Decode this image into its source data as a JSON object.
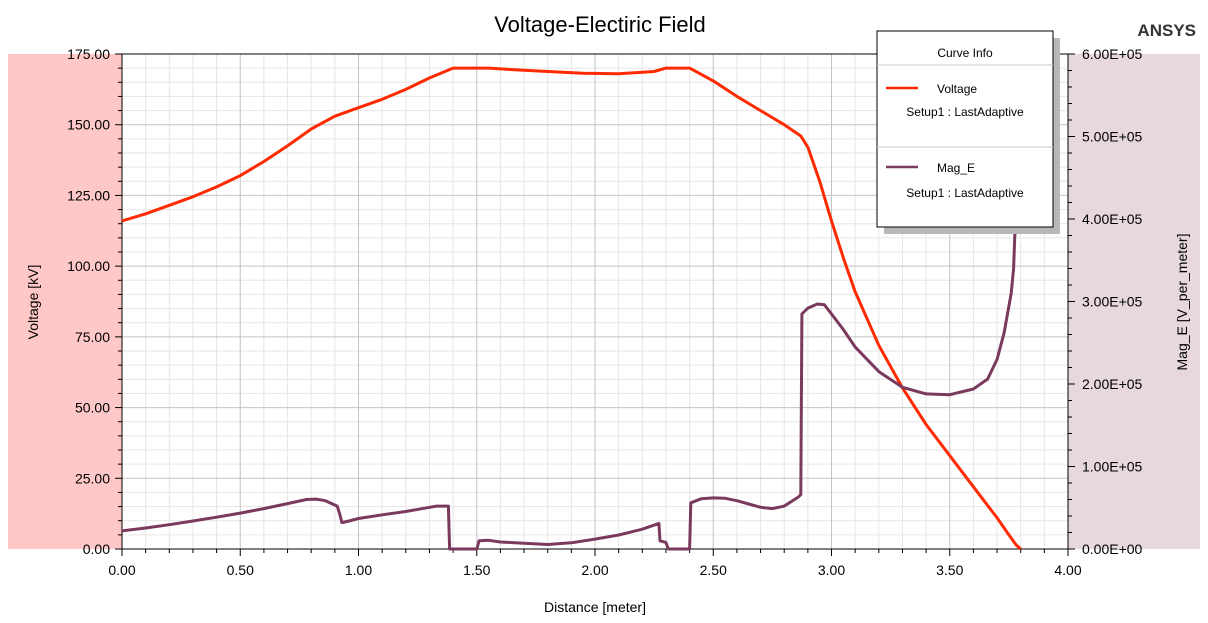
{
  "header": {
    "title": "Voltage-Electiric Field",
    "brand": "ANSYS"
  },
  "legend": {
    "title": "Curve Info",
    "placement": "top-right",
    "entries": [
      {
        "name": "Voltage",
        "setup": "Setup1 : LastAdaptive",
        "color": "#ff2a00"
      },
      {
        "name": "Mag_E",
        "setup": "Setup1 : LastAdaptive",
        "color": "#7a3a5e"
      }
    ]
  },
  "chart_data": {
    "type": "line",
    "title": "Voltage-Electiric Field",
    "xlabel": "Distance [meter]",
    "ylabel_left": "Voltage [kV]",
    "ylabel_right": "Mag_E [V_per_meter]",
    "xlim": [
      0,
      4
    ],
    "ylim_left": [
      0,
      175
    ],
    "ylim_right": [
      0,
      600000
    ],
    "grid": true,
    "x_ticks": [
      "0.00",
      "0.50",
      "1.00",
      "1.50",
      "2.00",
      "2.50",
      "3.00",
      "3.50",
      "4.00"
    ],
    "y_left_ticks": [
      "0.00",
      "25.00",
      "50.00",
      "75.00",
      "100.00",
      "125.00",
      "150.00",
      "175.00"
    ],
    "y_right_ticks": [
      "0.00E+00",
      "1.00E+05",
      "2.00E+05",
      "3.00E+05",
      "4.00E+05",
      "5.00E+05",
      "6.00E+05"
    ],
    "left_band_color": "#ffc8c8",
    "right_band_color": "#e6d8dc",
    "series": [
      {
        "name": "Voltage",
        "axis": "left",
        "color": "#ff2a00",
        "points": [
          [
            0.0,
            116
          ],
          [
            0.1,
            118.5
          ],
          [
            0.2,
            121.5
          ],
          [
            0.3,
            124.5
          ],
          [
            0.4,
            128
          ],
          [
            0.5,
            132
          ],
          [
            0.6,
            137
          ],
          [
            0.7,
            142.5
          ],
          [
            0.8,
            148.5
          ],
          [
            0.9,
            153
          ],
          [
            1.0,
            156
          ],
          [
            1.1,
            159
          ],
          [
            1.2,
            162.5
          ],
          [
            1.3,
            166.5
          ],
          [
            1.4,
            170
          ],
          [
            1.55,
            170
          ],
          [
            1.65,
            169.5
          ],
          [
            1.8,
            168.8
          ],
          [
            1.95,
            168.2
          ],
          [
            2.1,
            168
          ],
          [
            2.25,
            168.8
          ],
          [
            2.3,
            170
          ],
          [
            2.4,
            170
          ],
          [
            2.5,
            165.5
          ],
          [
            2.6,
            160
          ],
          [
            2.7,
            155
          ],
          [
            2.8,
            150
          ],
          [
            2.87,
            146
          ],
          [
            2.9,
            142
          ],
          [
            2.95,
            130
          ],
          [
            3.0,
            116
          ],
          [
            3.05,
            103
          ],
          [
            3.1,
            91
          ],
          [
            3.2,
            72
          ],
          [
            3.3,
            57
          ],
          [
            3.4,
            44
          ],
          [
            3.5,
            33
          ],
          [
            3.6,
            22
          ],
          [
            3.7,
            11
          ],
          [
            3.75,
            5
          ],
          [
            3.78,
            1.5
          ],
          [
            3.8,
            0
          ]
        ]
      },
      {
        "name": "Mag_E",
        "axis": "right",
        "color": "#7a3a5e",
        "points": [
          [
            0.0,
            22000
          ],
          [
            0.1,
            25500
          ],
          [
            0.2,
            29500
          ],
          [
            0.3,
            34000
          ],
          [
            0.4,
            38500
          ],
          [
            0.5,
            43500
          ],
          [
            0.6,
            49000
          ],
          [
            0.7,
            55000
          ],
          [
            0.78,
            60000
          ],
          [
            0.82,
            60500
          ],
          [
            0.86,
            58500
          ],
          [
            0.91,
            52000
          ],
          [
            0.92,
            43000
          ],
          [
            0.93,
            32000
          ],
          [
            0.96,
            34000
          ],
          [
            1.0,
            37000
          ],
          [
            1.1,
            41500
          ],
          [
            1.2,
            45500
          ],
          [
            1.28,
            49500
          ],
          [
            1.33,
            52000
          ],
          [
            1.38,
            52000
          ],
          [
            1.385,
            0
          ],
          [
            1.5,
            0
          ],
          [
            1.51,
            10000
          ],
          [
            1.55,
            10500
          ],
          [
            1.6,
            8500
          ],
          [
            1.7,
            7000
          ],
          [
            1.8,
            5500
          ],
          [
            1.9,
            7500
          ],
          [
            2.0,
            12000
          ],
          [
            2.1,
            17000
          ],
          [
            2.2,
            24000
          ],
          [
            2.27,
            31000
          ],
          [
            2.275,
            10000
          ],
          [
            2.3,
            8000
          ],
          [
            2.31,
            0
          ],
          [
            2.4,
            0
          ],
          [
            2.405,
            56000
          ],
          [
            2.45,
            61000
          ],
          [
            2.5,
            62000
          ],
          [
            2.55,
            61500
          ],
          [
            2.6,
            58500
          ],
          [
            2.65,
            54500
          ],
          [
            2.7,
            50500
          ],
          [
            2.75,
            49000
          ],
          [
            2.8,
            52000
          ],
          [
            2.86,
            63000
          ],
          [
            2.87,
            66000
          ],
          [
            2.875,
            285000
          ],
          [
            2.9,
            292000
          ],
          [
            2.94,
            297000
          ],
          [
            2.97,
            296000
          ],
          [
            3.0,
            285000
          ],
          [
            3.05,
            266000
          ],
          [
            3.1,
            245000
          ],
          [
            3.2,
            215000
          ],
          [
            3.3,
            196000
          ],
          [
            3.4,
            188000
          ],
          [
            3.5,
            187000
          ],
          [
            3.6,
            194000
          ],
          [
            3.66,
            206000
          ],
          [
            3.7,
            230000
          ],
          [
            3.73,
            262000
          ],
          [
            3.76,
            310000
          ],
          [
            3.77,
            340000
          ],
          [
            3.775,
            380000
          ],
          [
            3.785,
            400000
          ]
        ]
      }
    ]
  }
}
